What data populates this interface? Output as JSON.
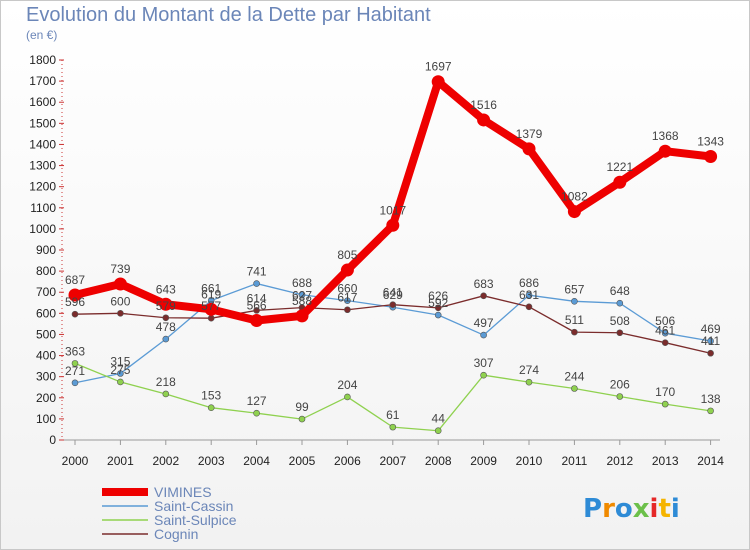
{
  "chart_data": {
    "type": "line",
    "title": "Evolution du Montant de la Dette par Habitant",
    "unit_label": "(en €)",
    "xlabel": "",
    "ylabel": "",
    "categories": [
      "2000",
      "2001",
      "2002",
      "2003",
      "2004",
      "2005",
      "2006",
      "2007",
      "2008",
      "2009",
      "2010",
      "2011",
      "2012",
      "2013",
      "2014"
    ],
    "ylim": [
      0,
      1800
    ],
    "yticks": [
      0,
      100,
      200,
      300,
      400,
      500,
      600,
      700,
      800,
      900,
      1000,
      1100,
      1200,
      1300,
      1400,
      1500,
      1600,
      1700,
      1800
    ],
    "grid": false,
    "legend_position": "bottom-left",
    "series": [
      {
        "name": "VIMINES",
        "color": "#ee0000",
        "thick": true,
        "values": [
          687,
          739,
          643,
          619,
          566,
          588,
          805,
          1017,
          1697,
          1516,
          1379,
          1082,
          1221,
          1368,
          1343
        ],
        "labels": [
          "687",
          "739",
          "643",
          "619",
          "566",
          "588",
          "805",
          "1017",
          "1697",
          "1516",
          "1379",
          "1082",
          "1221",
          "1368",
          "1343"
        ]
      },
      {
        "name": "Saint-Cassin",
        "color": "#5b9bd5",
        "thick": false,
        "values": [
          271,
          315,
          478,
          661,
          741,
          688,
          660,
          629,
          592,
          497,
          686,
          657,
          648,
          506,
          469
        ],
        "labels": [
          "271",
          "315",
          "478",
          "661",
          "741",
          "688",
          "660",
          "629",
          "592",
          "497",
          "686",
          "657",
          "648",
          "506",
          "469"
        ]
      },
      {
        "name": "Saint-Sulpice",
        "color": "#8fd14f",
        "thick": false,
        "values": [
          363,
          275,
          218,
          153,
          127,
          99,
          204,
          61,
          44,
          307,
          274,
          244,
          206,
          170,
          138
        ],
        "labels": [
          "363",
          "275",
          "218",
          "153",
          "127",
          "99",
          "204",
          "61",
          "44",
          "307",
          "274",
          "244",
          "206",
          "170",
          "138"
        ]
      },
      {
        "name": "Cognin",
        "color": "#7b2c2c",
        "thick": false,
        "values": [
          596,
          600,
          579,
          577,
          614,
          627,
          617,
          641,
          626,
          683,
          631,
          511,
          508,
          461,
          411
        ],
        "labels": [
          "596",
          "600",
          "579",
          "577",
          "614",
          "627",
          "617",
          "641",
          "626",
          "683",
          "631",
          "511",
          "508",
          "461",
          "411"
        ]
      }
    ]
  },
  "brand": {
    "letters": [
      "P",
      "r",
      "o",
      "x",
      "i",
      "t",
      "i"
    ],
    "colors": [
      "#2e8bd6",
      "#f08a00",
      "#2e8bd6",
      "#6cc04a",
      "#e52828",
      "#f5b400",
      "#2e8bd6"
    ]
  }
}
